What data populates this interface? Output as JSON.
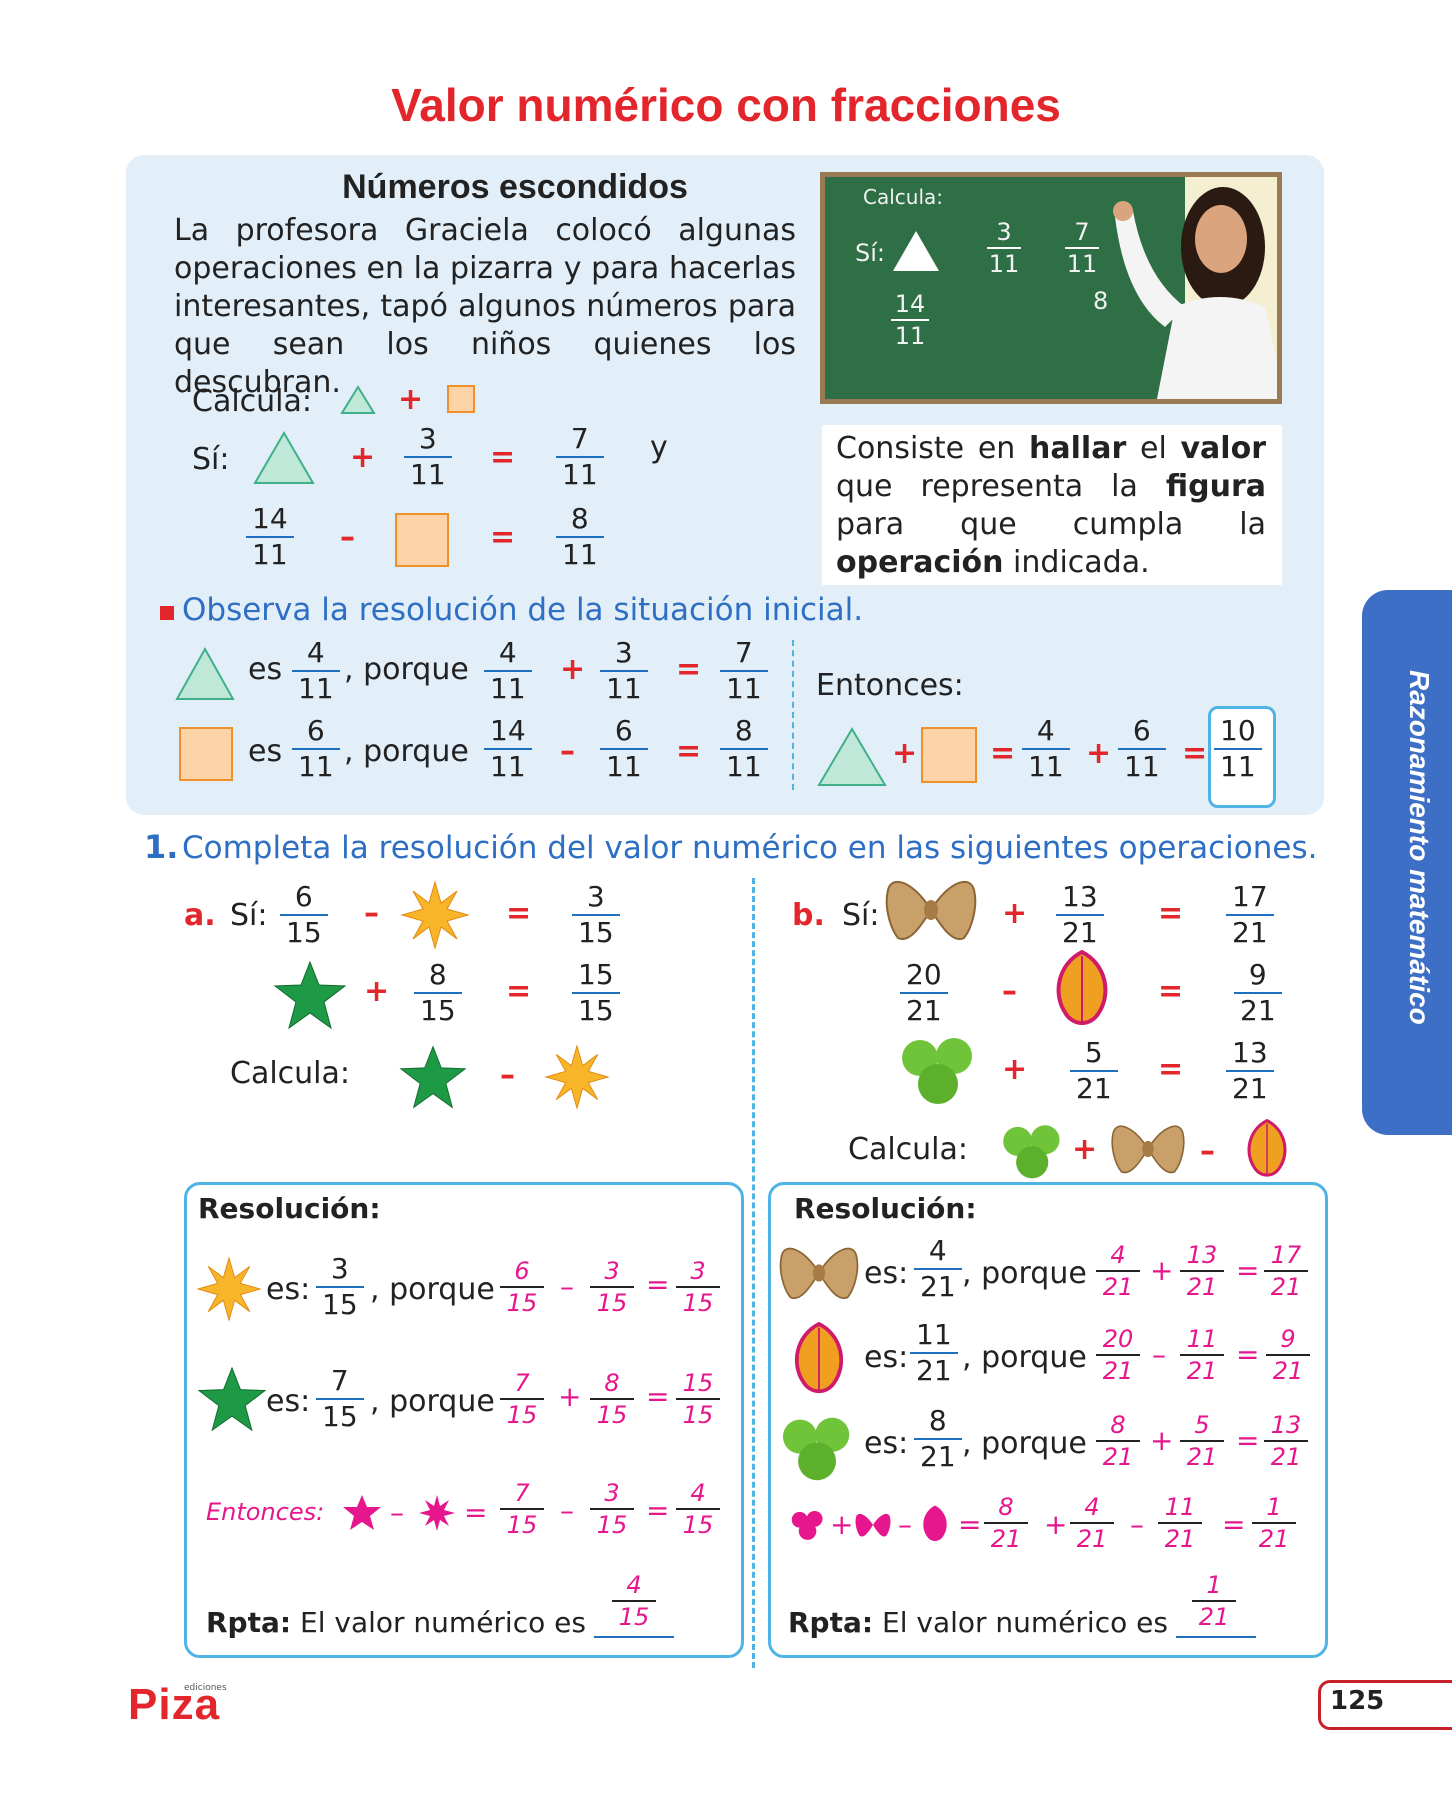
{
  "title": "Valor numérico con fracciones",
  "intro_box": {
    "subtitle": "Números escondidos",
    "paragraph": "La profesora Graciela colocó algunas operaciones en la pizarra y para hacerlas interesantes, tapó algunos números para que sean los niños quienes los descubran.",
    "calcula": "Calcula:",
    "si": "Sí:",
    "y": "y",
    "eq1": {
      "b_num": "3",
      "b_den": "11",
      "r_num": "7",
      "r_den": "11"
    },
    "eq2": {
      "a_num": "14",
      "a_den": "11",
      "r_num": "8",
      "r_den": "11"
    },
    "board": {
      "calcula": "Calcula:",
      "si": "Sí:",
      "f1n": "3",
      "f1d": "11",
      "f2n": "7",
      "f2d": "11",
      "f3n": "14",
      "f3d": "11",
      "f4n": "8"
    },
    "info_parts": [
      "Consiste en ",
      "hallar",
      " el ",
      "valor",
      " que representa la ",
      "figura",
      " para que cumpla la ",
      "operación",
      " indicada."
    ]
  },
  "observa": {
    "heading": "Observa la resolución de la situación inicial.",
    "es": "es",
    "porque": ", porque",
    "row1": {
      "val_n": "4",
      "val_d": "11",
      "a_n": "4",
      "a_d": "11",
      "b_n": "3",
      "b_d": "11",
      "r_n": "7",
      "r_d": "11"
    },
    "row2": {
      "val_n": "6",
      "val_d": "11",
      "a_n": "14",
      "a_d": "11",
      "b_n": "6",
      "b_d": "11",
      "r_n": "8",
      "r_d": "11"
    },
    "entonces": "Entonces:",
    "final": {
      "a_n": "4",
      "a_d": "11",
      "b_n": "6",
      "b_d": "11",
      "r_n": "10",
      "r_d": "11"
    }
  },
  "exercise": {
    "number": "1.",
    "instruction": "Completa la resolución del valor numérico en las siguientes operaciones.",
    "a": {
      "label": "a.",
      "si": "Sí:",
      "e1": {
        "a_n": "6",
        "a_d": "15",
        "r_n": "3",
        "r_d": "15"
      },
      "e2": {
        "b_n": "8",
        "b_d": "15",
        "r_n": "15",
        "r_d": "15"
      },
      "calcula": "Calcula:",
      "res_title": "Resolución:",
      "es": "es:",
      "porque": ", porque",
      "r1": {
        "v_n": "3",
        "v_d": "15",
        "a_n": "6",
        "a_d": "15",
        "b_n": "3",
        "b_d": "15",
        "c_n": "3",
        "c_d": "15"
      },
      "r2": {
        "v_n": "7",
        "v_d": "15",
        "a_n": "7",
        "a_d": "15",
        "b_n": "8",
        "b_d": "15",
        "c_n": "15",
        "c_d": "15"
      },
      "entonces": "Entonces:",
      "r3": {
        "a_n": "7",
        "a_d": "15",
        "b_n": "3",
        "b_d": "15",
        "c_n": "4",
        "c_d": "15"
      },
      "rpta_label": "Rpta:",
      "rpta_text": "El valor numérico es",
      "ans_n": "4",
      "ans_d": "15"
    },
    "b": {
      "label": "b.",
      "si": "Sí:",
      "e1": {
        "b_n": "13",
        "b_d": "21",
        "r_n": "17",
        "r_d": "21"
      },
      "e2": {
        "a_n": "20",
        "a_d": "21",
        "r_n": "9",
        "r_d": "21"
      },
      "e3": {
        "b_n": "5",
        "b_d": "21",
        "r_n": "13",
        "r_d": "21"
      },
      "calcula": "Calcula:",
      "res_title": "Resolución:",
      "es": "es:",
      "porque": ", porque",
      "r1": {
        "v_n": "4",
        "v_d": "21",
        "a_n": "4",
        "a_d": "21",
        "b_n": "13",
        "b_d": "21",
        "c_n": "17",
        "c_d": "21"
      },
      "r2": {
        "v_n": "11",
        "v_d": "21",
        "a_n": "20",
        "a_d": "21",
        "b_n": "11",
        "b_d": "21",
        "c_n": "9",
        "c_d": "21"
      },
      "r3": {
        "v_n": "8",
        "v_d": "21",
        "a_n": "8",
        "a_d": "21",
        "b_n": "5",
        "b_d": "21",
        "c_n": "13",
        "c_d": "21"
      },
      "r4": {
        "a_n": "8",
        "a_d": "21",
        "b_n": "4",
        "b_d": "21",
        "c_n": "11",
        "c_d": "21",
        "d_n": "1",
        "d_d": "21"
      },
      "rpta_label": "Rpta:",
      "rpta_text": "El valor numérico es",
      "ans_n": "1",
      "ans_d": "21"
    }
  },
  "side_tab": "Razonamiento matemático",
  "page_number": "125",
  "logo": "Piza",
  "logo_small": "ediciones",
  "colors": {
    "title_red": "#e3262b",
    "heading_blue": "#2e6fc3",
    "answer_pink": "#e6168c",
    "box_blue": "#e2eef8",
    "border_cyan": "#4fb3e3"
  }
}
